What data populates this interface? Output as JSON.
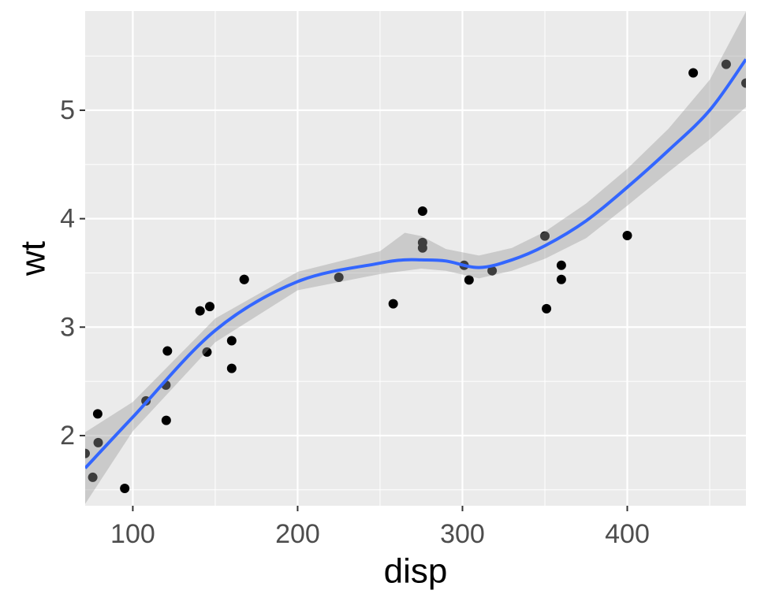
{
  "chart_data": {
    "type": "scatter",
    "x_label": "disp",
    "y_label": "wt",
    "xlim": [
      71.1,
      472
    ],
    "ylim": [
      1.353,
      5.915
    ],
    "xticks": [
      100,
      200,
      300,
      400
    ],
    "yticks": [
      2,
      3,
      4,
      5
    ],
    "grid": true,
    "points": {
      "color": "#000000",
      "x": [
        160,
        160,
        108,
        258,
        360,
        225,
        360,
        146.7,
        140.8,
        167.6,
        167.6,
        275.8,
        275.8,
        275.8,
        472,
        460,
        440,
        78.7,
        75.7,
        71.1,
        120.1,
        318,
        304,
        350,
        400,
        79,
        120.3,
        95.1,
        351,
        145,
        301,
        121
      ],
      "y": [
        2.62,
        2.875,
        2.32,
        3.215,
        3.44,
        3.46,
        3.57,
        3.19,
        3.15,
        3.44,
        3.44,
        4.07,
        3.73,
        3.78,
        5.25,
        5.424,
        5.345,
        2.2,
        1.615,
        1.835,
        2.465,
        3.52,
        3.435,
        3.84,
        3.845,
        1.935,
        2.14,
        1.513,
        3.17,
        2.77,
        3.57,
        2.78
      ]
    },
    "smooth": {
      "color": "#3366ff",
      "fill": "#999999",
      "x": [
        71.1,
        100,
        150,
        200,
        250,
        265,
        275,
        290,
        310,
        330,
        350,
        375,
        400,
        425,
        450,
        472
      ],
      "y": [
        1.7,
        2.17,
        2.97,
        3.42,
        3.59,
        3.62,
        3.62,
        3.61,
        3.55,
        3.62,
        3.75,
        3.98,
        4.29,
        4.63,
        5.0,
        5.47
      ],
      "ymin": [
        1.37,
        2.04,
        2.86,
        3.34,
        3.49,
        3.52,
        3.54,
        3.52,
        3.45,
        3.52,
        3.63,
        3.82,
        4.12,
        4.43,
        4.73,
        5.03
      ],
      "ymax": [
        2.03,
        2.31,
        3.08,
        3.51,
        3.7,
        3.87,
        3.84,
        3.72,
        3.66,
        3.73,
        3.88,
        4.14,
        4.46,
        4.83,
        5.28,
        5.91
      ]
    }
  }
}
